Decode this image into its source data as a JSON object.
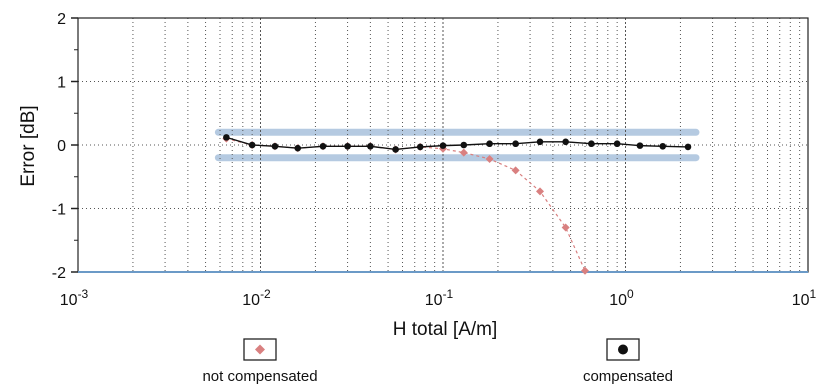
{
  "chart_data": {
    "type": "scatter",
    "title": "",
    "xlabel": "H total [A/m]",
    "ylabel": "Error [dB]",
    "xscale": "log",
    "xlim": [
      0.001,
      10
    ],
    "ylim": [
      -2,
      2
    ],
    "x_ticks": [
      {
        "base": "10",
        "exp": "-3"
      },
      {
        "base": "10",
        "exp": "-2"
      },
      {
        "base": "10",
        "exp": "-1"
      },
      {
        "base": "10",
        "exp": "0"
      },
      {
        "base": "10",
        "exp": "1"
      }
    ],
    "y_ticks": [
      "2",
      "1",
      "0",
      "-1",
      "-2"
    ],
    "y_tick_values": [
      2,
      1,
      0,
      -1,
      -2
    ],
    "grid": true,
    "tolerance_band": [
      -0.2,
      0.2
    ],
    "colors": {
      "compensated": "#111111",
      "not_compensated": "#d98080",
      "band": "#a9c1dc",
      "axis": "#222222",
      "grid": "#555555"
    },
    "series": [
      {
        "name": "not compensated",
        "marker": "diamond",
        "x": [
          0.0065,
          0.009,
          0.012,
          0.016,
          0.022,
          0.03,
          0.04,
          0.055,
          0.075,
          0.1,
          0.13,
          0.18,
          0.25,
          0.34,
          0.47,
          0.6
        ],
        "y": [
          0.1,
          0.0,
          -0.02,
          -0.05,
          -0.02,
          -0.02,
          -0.02,
          -0.07,
          -0.03,
          -0.06,
          -0.12,
          -0.22,
          -0.4,
          -0.73,
          -1.3,
          -1.98
        ]
      },
      {
        "name": "compensated",
        "marker": "circle",
        "x": [
          0.0065,
          0.009,
          0.012,
          0.016,
          0.022,
          0.03,
          0.04,
          0.055,
          0.075,
          0.1,
          0.13,
          0.18,
          0.25,
          0.34,
          0.47,
          0.65,
          0.9,
          1.2,
          1.6,
          2.2
        ],
        "y": [
          0.12,
          0.0,
          -0.02,
          -0.05,
          -0.02,
          -0.02,
          -0.02,
          -0.07,
          -0.03,
          -0.01,
          0.0,
          0.02,
          0.02,
          0.05,
          0.05,
          0.02,
          0.02,
          -0.01,
          -0.02,
          -0.03
        ]
      }
    ],
    "legend": [
      {
        "label": "not compensated",
        "marker": "diamond"
      },
      {
        "label": "compensated",
        "marker": "circle"
      }
    ],
    "legend_placement": "bottom"
  }
}
